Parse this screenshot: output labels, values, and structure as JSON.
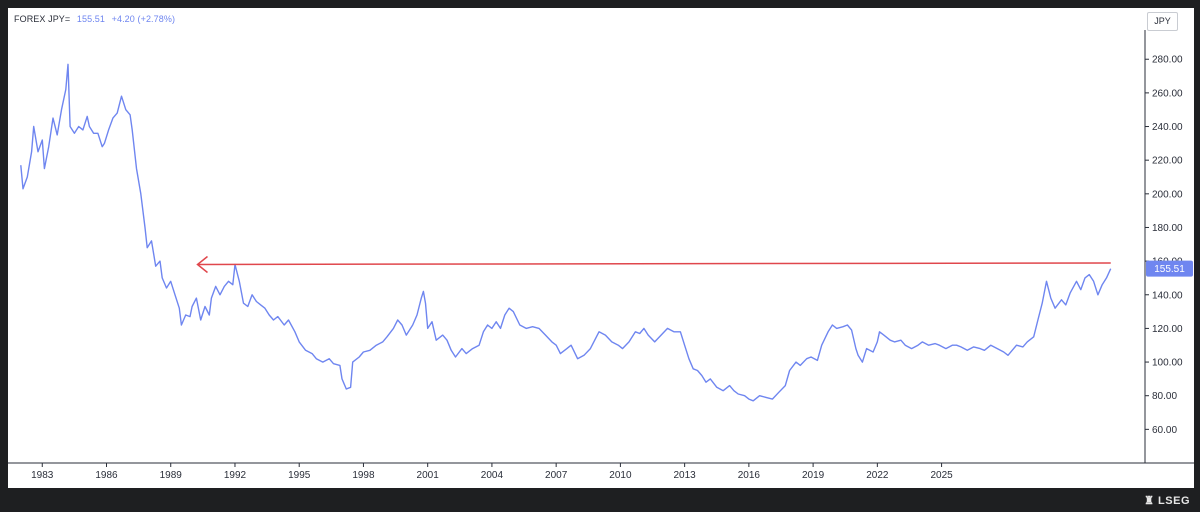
{
  "header": {
    "symbol": "FOREX JPY=",
    "value": "155.51",
    "change": "+4.20 (+2.78%)"
  },
  "unit_label": "JPY",
  "price_label": "155.51",
  "footer_brand": "LSEG",
  "colors": {
    "line": "#6f86f0",
    "arrow": "#e0474c",
    "label_bg": "#6f86f0"
  },
  "chart_data": {
    "type": "line",
    "series": [
      {
        "values": [
          [
            1982.0,
            217
          ],
          [
            1982.1,
            203
          ],
          [
            1982.3,
            210
          ],
          [
            1982.5,
            225
          ],
          [
            1982.6,
            240
          ],
          [
            1982.8,
            225
          ],
          [
            1983.0,
            232
          ],
          [
            1983.1,
            215
          ],
          [
            1983.3,
            228
          ],
          [
            1983.5,
            245
          ],
          [
            1983.7,
            235
          ],
          [
            1983.9,
            250
          ],
          [
            1984.1,
            262
          ],
          [
            1984.2,
            277
          ],
          [
            1984.3,
            240
          ],
          [
            1984.5,
            236
          ],
          [
            1984.7,
            240
          ],
          [
            1984.9,
            238
          ],
          [
            1985.1,
            246
          ],
          [
            1985.2,
            240
          ],
          [
            1985.4,
            236
          ],
          [
            1985.6,
            236
          ],
          [
            1985.8,
            228
          ],
          [
            1985.9,
            230
          ],
          [
            1986.1,
            238
          ],
          [
            1986.3,
            245
          ],
          [
            1986.5,
            248
          ],
          [
            1986.7,
            258
          ],
          [
            1986.9,
            250
          ],
          [
            1987.1,
            247
          ],
          [
            1987.2,
            238
          ],
          [
            1987.4,
            215
          ],
          [
            1987.6,
            200
          ],
          [
            1987.8,
            180
          ],
          [
            1987.9,
            168
          ],
          [
            1988.1,
            172
          ],
          [
            1988.3,
            157
          ],
          [
            1988.5,
            160
          ],
          [
            1988.6,
            150
          ],
          [
            1988.8,
            144
          ],
          [
            1989.0,
            148
          ],
          [
            1989.2,
            140
          ],
          [
            1989.4,
            132
          ],
          [
            1989.5,
            122
          ],
          [
            1989.7,
            128
          ],
          [
            1989.9,
            127
          ],
          [
            1990.0,
            133
          ],
          [
            1990.2,
            138
          ],
          [
            1990.4,
            125
          ],
          [
            1990.6,
            133
          ],
          [
            1990.8,
            128
          ],
          [
            1990.9,
            138
          ],
          [
            1991.1,
            145
          ],
          [
            1991.3,
            140
          ],
          [
            1991.5,
            145
          ],
          [
            1991.7,
            148
          ],
          [
            1991.9,
            146
          ],
          [
            1992.0,
            158
          ],
          [
            1992.2,
            148
          ],
          [
            1992.4,
            135
          ],
          [
            1992.6,
            133
          ],
          [
            1992.8,
            140
          ],
          [
            1993.0,
            136
          ],
          [
            1993.2,
            134
          ],
          [
            1993.4,
            132
          ],
          [
            1993.6,
            128
          ],
          [
            1993.8,
            125
          ],
          [
            1994.0,
            127
          ],
          [
            1994.3,
            122
          ],
          [
            1994.5,
            125
          ],
          [
            1994.8,
            118
          ],
          [
            1995.0,
            112
          ],
          [
            1995.3,
            107
          ],
          [
            1995.6,
            105
          ],
          [
            1995.8,
            102
          ],
          [
            1996.1,
            100
          ],
          [
            1996.4,
            102
          ],
          [
            1996.6,
            99
          ],
          [
            1996.9,
            98
          ],
          [
            1997.0,
            90
          ],
          [
            1997.2,
            84
          ],
          [
            1997.4,
            85
          ],
          [
            1997.5,
            100
          ],
          [
            1997.8,
            103
          ],
          [
            1998.0,
            106
          ],
          [
            1998.3,
            107
          ],
          [
            1998.6,
            110
          ],
          [
            1998.9,
            112
          ],
          [
            1999.1,
            115
          ],
          [
            1999.4,
            120
          ],
          [
            1999.6,
            125
          ],
          [
            1999.8,
            122
          ],
          [
            2000.0,
            116
          ],
          [
            2000.3,
            122
          ],
          [
            2000.5,
            128
          ],
          [
            2000.7,
            138
          ],
          [
            2000.8,
            142
          ],
          [
            2000.9,
            135
          ],
          [
            2001.0,
            120
          ],
          [
            2001.2,
            124
          ],
          [
            2001.4,
            113
          ],
          [
            2001.7,
            116
          ],
          [
            2001.9,
            113
          ],
          [
            2002.1,
            107
          ],
          [
            2002.3,
            103
          ],
          [
            2002.6,
            108
          ],
          [
            2002.8,
            105
          ],
          [
            2003.1,
            108
          ],
          [
            2003.4,
            110
          ],
          [
            2003.6,
            118
          ],
          [
            2003.8,
            122
          ],
          [
            2004.0,
            120
          ],
          [
            2004.2,
            124
          ],
          [
            2004.4,
            120
          ],
          [
            2004.6,
            128
          ],
          [
            2004.8,
            132
          ],
          [
            2005.0,
            130
          ],
          [
            2005.3,
            122
          ],
          [
            2005.6,
            120
          ],
          [
            2005.9,
            121
          ],
          [
            2006.2,
            120
          ],
          [
            2006.5,
            116
          ],
          [
            2006.8,
            112
          ],
          [
            2007.0,
            110
          ],
          [
            2007.2,
            105
          ],
          [
            2007.5,
            108
          ],
          [
            2007.7,
            110
          ],
          [
            2008.0,
            102
          ],
          [
            2008.3,
            104
          ],
          [
            2008.6,
            108
          ],
          [
            2008.8,
            113
          ],
          [
            2009.0,
            118
          ],
          [
            2009.3,
            116
          ],
          [
            2009.6,
            112
          ],
          [
            2009.9,
            110
          ],
          [
            2010.1,
            108
          ],
          [
            2010.4,
            112
          ],
          [
            2010.7,
            118
          ],
          [
            2010.9,
            117
          ],
          [
            2011.1,
            120
          ],
          [
            2011.3,
            116
          ],
          [
            2011.6,
            112
          ],
          [
            2011.9,
            116
          ],
          [
            2012.2,
            120
          ],
          [
            2012.5,
            118
          ],
          [
            2012.8,
            118
          ],
          [
            2013.0,
            110
          ],
          [
            2013.2,
            102
          ],
          [
            2013.4,
            96
          ],
          [
            2013.6,
            95
          ],
          [
            2013.8,
            92
          ],
          [
            2014.0,
            88
          ],
          [
            2014.2,
            90
          ],
          [
            2014.5,
            85
          ],
          [
            2014.8,
            83
          ],
          [
            2015.1,
            86
          ],
          [
            2015.3,
            83
          ],
          [
            2015.5,
            81
          ],
          [
            2015.8,
            80
          ],
          [
            2016.0,
            78
          ],
          [
            2016.2,
            77
          ],
          [
            2016.5,
            80
          ],
          [
            2016.8,
            79
          ],
          [
            2017.1,
            78
          ],
          [
            2017.4,
            82
          ],
          [
            2017.7,
            86
          ],
          [
            2017.9,
            95
          ],
          [
            2018.2,
            100
          ],
          [
            2018.4,
            98
          ],
          [
            2018.7,
            102
          ],
          [
            2018.9,
            103
          ],
          [
            2019.2,
            101
          ],
          [
            2019.4,
            110
          ],
          [
            2019.7,
            118
          ],
          [
            2019.9,
            122
          ],
          [
            2020.1,
            120
          ],
          [
            2020.4,
            121
          ],
          [
            2020.6,
            122
          ],
          [
            2020.8,
            119
          ],
          [
            2021.0,
            108
          ],
          [
            2021.1,
            104
          ],
          [
            2021.3,
            100
          ],
          [
            2021.5,
            108
          ],
          [
            2021.8,
            106
          ],
          [
            2022.0,
            112
          ],
          [
            2022.1,
            118
          ],
          [
            2022.3,
            116
          ],
          [
            2022.6,
            113
          ],
          [
            2022.8,
            112
          ],
          [
            2023.1,
            113
          ],
          [
            2023.3,
            110
          ],
          [
            2023.6,
            108
          ],
          [
            2023.9,
            110
          ],
          [
            2024.1,
            112
          ],
          [
            2024.4,
            110
          ],
          [
            2024.7,
            111
          ],
          [
            2024.9,
            110
          ],
          [
            2025.2,
            108
          ],
          [
            2025.5,
            110
          ],
          [
            2025.7,
            110
          ],
          [
            2025.9,
            109
          ],
          [
            2026.2,
            107
          ],
          [
            2026.5,
            109
          ],
          [
            2026.8,
            108
          ],
          [
            2027.0,
            107
          ],
          [
            2027.3,
            110
          ],
          [
            2027.6,
            108
          ],
          [
            2027.9,
            106
          ],
          [
            2028.1,
            104
          ],
          [
            2028.3,
            107
          ],
          [
            2028.5,
            110
          ],
          [
            2028.8,
            109
          ],
          [
            2029.0,
            112
          ],
          [
            2029.3,
            115
          ],
          [
            2029.5,
            125
          ],
          [
            2029.7,
            135
          ],
          [
            2029.9,
            148
          ],
          [
            2030.1,
            138
          ],
          [
            2030.3,
            132
          ],
          [
            2030.6,
            137
          ],
          [
            2030.8,
            134
          ],
          [
            2031.0,
            141
          ],
          [
            2031.3,
            148
          ],
          [
            2031.5,
            143
          ],
          [
            2031.7,
            150
          ],
          [
            2031.9,
            152
          ],
          [
            2032.1,
            148
          ],
          [
            2032.3,
            140
          ],
          [
            2032.5,
            146
          ],
          [
            2032.7,
            150
          ],
          [
            2032.9,
            155.51
          ]
        ]
      }
    ],
    "x_ticks": [
      "1983",
      "1986",
      "1989",
      "1992",
      "1995",
      "1998",
      "2001",
      "2004",
      "2007",
      "2010",
      "2013",
      "2016",
      "2019",
      "2022",
      "2025"
    ],
    "y_ticks": [
      "60.00",
      "80.00",
      "100.00",
      "120.00",
      "140.00",
      "160.00",
      "180.00",
      "200.00",
      "220.00",
      "240.00",
      "260.00",
      "280.00"
    ],
    "ylim": [
      40,
      295
    ],
    "annotations": [
      {
        "type": "arrow",
        "from_year": 2032.9,
        "to_year": 1990.25,
        "y": 158
      }
    ],
    "grid": false,
    "legend": "none"
  }
}
